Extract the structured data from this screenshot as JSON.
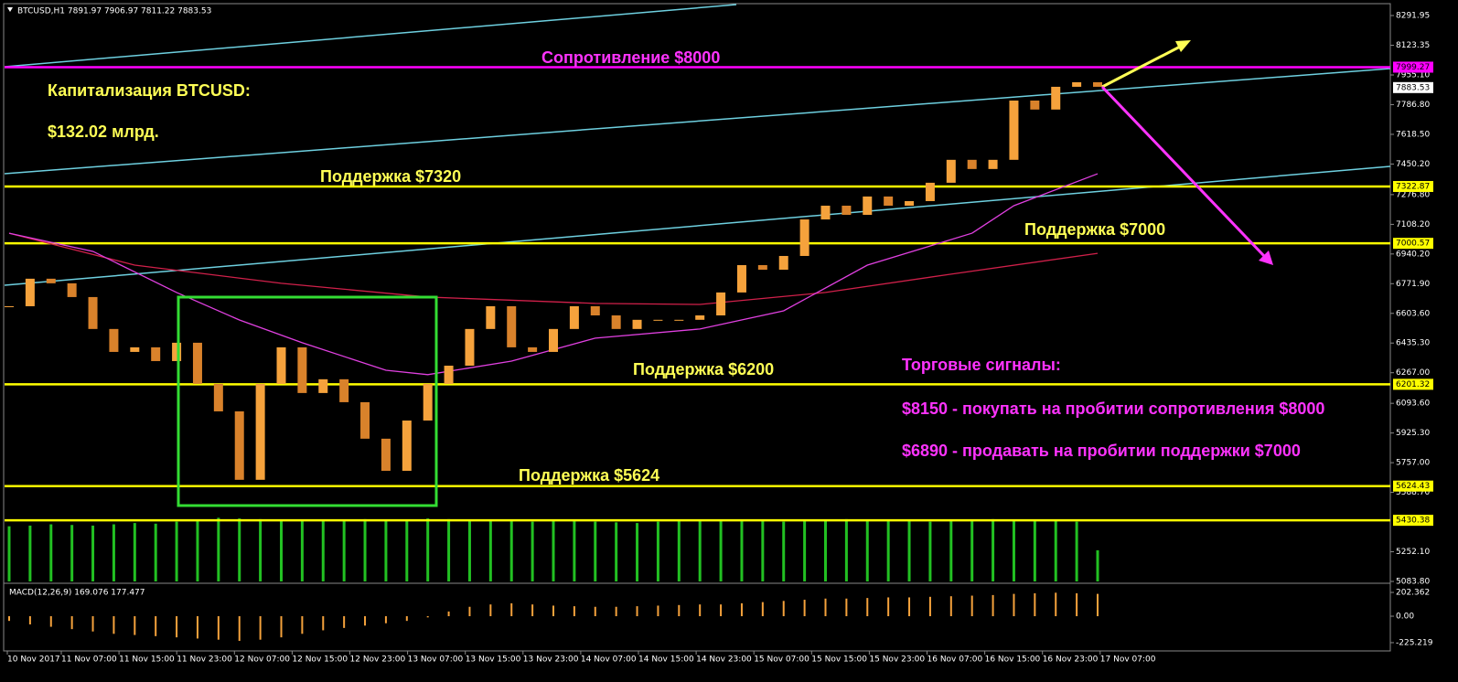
{
  "chart_data": {
    "type": "candlestick",
    "header": "BTCUSD,H1  7891.97 7906.97 7811.22 7883.53",
    "ylim": [
      5083.8,
      8291.95
    ],
    "yticks": [
      8291.95,
      8123.35,
      {
        "value": 7955.1,
        "label": "7955.10"
      },
      {
        "value": 7786.8,
        "label": "7786.80"
      },
      {
        "value": 7618.5,
        "label": "7618.50"
      },
      {
        "value": 7450.2,
        "label": "7450.20"
      },
      {
        "value": 7276.8,
        "label": "7276.80"
      },
      {
        "value": 7108.2,
        "label": "7108.20"
      },
      {
        "value": 6940.2,
        "label": "6940.20"
      },
      {
        "value": 6771.9,
        "label": "6771.90"
      },
      {
        "value": 6603.6,
        "label": "6603.60"
      },
      {
        "value": 6435.3,
        "label": "6435.30"
      },
      {
        "value": 6267,
        "label": "6267.00"
      },
      {
        "value": 6093.6,
        "label": "6093.60"
      },
      {
        "value": 5925.3,
        "label": "5925.30"
      },
      {
        "value": 5757,
        "label": "5757.00"
      },
      {
        "value": 5588.7,
        "label": "5588.70"
      },
      {
        "value": 5252.1,
        "label": "5252.10"
      },
      {
        "value": 5083.8,
        "label": "5083.80"
      }
    ],
    "categories": [
      "10 Nov 2017",
      "11 Nov 07:00",
      "11 Nov 15:00",
      "11 Nov 23:00",
      "12 Nov 07:00",
      "12 Nov 15:00",
      "12 Nov 23:00",
      "13 Nov 07:00",
      "13 Nov 15:00",
      "13 Nov 23:00",
      "14 Nov 07:00",
      "14 Nov 15:00",
      "14 Nov 23:00",
      "15 Nov 07:00",
      "15 Nov 15:00",
      "15 Nov 23:00",
      "16 Nov 07:00",
      "16 Nov 15:00",
      "16 Nov 23:00",
      "17 Nov 07:00"
    ],
    "up_color": "#f5a23c",
    "down_color": "#d9822b",
    "closes": [
      6644,
      6800,
      6774,
      6696,
      6515,
      6385,
      6411,
      6333,
      6437,
      6204,
      6048,
      5660,
      6204,
      6411,
      6152,
      6230,
      6100,
      5893,
      5711,
      5996,
      6204,
      6307,
      6515,
      6644,
      6411,
      6385,
      6515,
      6644,
      6592,
      6515,
      6567,
      6567,
      6567,
      6592,
      6722,
      6877,
      6851,
      6929,
      7136,
      7214,
      7162,
      7266,
      7214,
      7240,
      7344,
      7474,
      7422,
      7474,
      7810,
      7759,
      7888,
      7914,
      7888
    ],
    "ma_fast": {
      "color": "#e040e0",
      "x": [
        0,
        4,
        8,
        11,
        14,
        18,
        20,
        24,
        28,
        33,
        37,
        41,
        46,
        48,
        52
      ],
      "values": [
        7058,
        6955,
        6722,
        6566,
        6437,
        6281,
        6256,
        6333,
        6463,
        6515,
        6618,
        6877,
        7058,
        7214,
        7395
      ]
    },
    "ma_slow": {
      "color": "#d0204a",
      "x": [
        0,
        6,
        13,
        20,
        28,
        33,
        39,
        45,
        52
      ],
      "values": [
        7058,
        6877,
        6774,
        6696,
        6660,
        6654,
        6722,
        6826,
        6944
      ]
    },
    "levels": [
      {
        "value": 7999.27,
        "color": "#ff00ff"
      },
      {
        "value": 7322.87,
        "color": "#ffff00"
      },
      {
        "value": 7000.57,
        "color": "#ffff00"
      },
      {
        "value": 6201.32,
        "color": "#ffff00"
      },
      {
        "value": 5624.43,
        "color": "#ffff00"
      },
      {
        "value": 5430.38,
        "color": "#ffff00"
      }
    ],
    "current_price": 7883.53,
    "volume_color": "#22c022",
    "volume_lim": [
      0,
      100
    ],
    "volume": [
      85,
      86,
      88,
      87,
      86,
      88,
      90,
      89,
      92,
      95,
      98,
      97,
      96,
      95,
      94,
      93,
      95,
      96,
      94,
      95,
      97,
      96,
      95,
      94,
      93,
      92,
      93,
      94,
      92,
      91,
      90,
      92,
      93,
      94,
      95,
      94,
      93,
      92,
      94,
      95,
      96,
      95,
      94,
      93,
      92,
      94,
      95,
      96,
      95,
      94,
      93,
      92,
      48
    ],
    "macd_label": "MACD(12,26,9) 169.076 177.477",
    "macd_color": "#f5a23c",
    "macd_ylim": [
      -280,
      257
    ],
    "macd_yticks": [
      202.362,
      {
        "value": 0,
        "label": "0.00"
      },
      -225.219
    ],
    "macd": [
      -40,
      -70,
      -90,
      -110,
      -130,
      -150,
      -160,
      -170,
      -180,
      -190,
      -200,
      -210,
      -200,
      -180,
      -150,
      -120,
      -100,
      -80,
      -60,
      -40,
      -10,
      40,
      80,
      100,
      110,
      100,
      90,
      85,
      80,
      80,
      85,
      90,
      95,
      100,
      100,
      110,
      120,
      130,
      140,
      150,
      150,
      155,
      160,
      160,
      165,
      170,
      175,
      180,
      190,
      195,
      200,
      195,
      190
    ],
    "annotations": {
      "resistance": "Сопротивление $8000",
      "cap_title": "Капитализация BTCUSD:",
      "cap_value": "$132.02 млрд.",
      "support_7320": "Поддержка $7320",
      "support_7000": "Поддержка $7000",
      "support_6200": "Поддержка $6200",
      "support_5624": "Поддержка $5624",
      "signals_title": "Торговые сигналы:",
      "signal_buy": "$8150 - покупать на пробитии сопротивления $8000",
      "signal_sell": "$6890 - продавать на пробитии поддержки $7000"
    }
  }
}
